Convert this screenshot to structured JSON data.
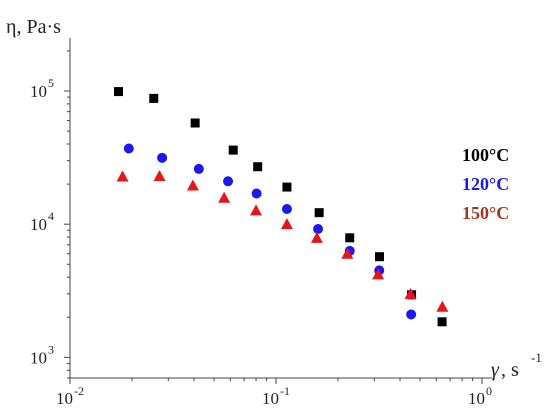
{
  "chart_data": {
    "type": "scatter",
    "xscale": "log",
    "yscale": "log",
    "xlim": [
      0.01,
      1
    ],
    "ylim": [
      700,
      250000
    ],
    "ylabel": "η, Pa·s",
    "xlabel_symbol": "γ",
    "xlabel_unit": ", s",
    "xlabel_exp": "-1",
    "x_ticks": [
      {
        "value": 0.01,
        "base": "10",
        "exp": "-2"
      },
      {
        "value": 0.1,
        "base": "10",
        "exp": "-1"
      },
      {
        "value": 1,
        "base": "10",
        "exp": "0"
      }
    ],
    "y_ticks": [
      {
        "value": 1000,
        "base": "10",
        "exp": "3"
      },
      {
        "value": 10000,
        "base": "10",
        "exp": "4"
      },
      {
        "value": 100000,
        "base": "10",
        "exp": "5"
      }
    ],
    "series": [
      {
        "name": "100°C",
        "color": "#000000",
        "marker": "square",
        "x": [
          0.0172,
          0.0255,
          0.0405,
          0.062,
          0.0815,
          0.113,
          0.162,
          0.228,
          0.318,
          0.455,
          0.64
        ],
        "y": [
          99000,
          88000,
          57500,
          36000,
          27000,
          19000,
          12200,
          7900,
          5700,
          2950,
          1850
        ]
      },
      {
        "name": "120°C",
        "color": "#1a1aee",
        "marker": "circle",
        "x": [
          0.0193,
          0.028,
          0.0422,
          0.0585,
          0.0805,
          0.113,
          0.16,
          0.228,
          0.317,
          0.453
        ],
        "y": [
          37000,
          31500,
          26000,
          21000,
          17000,
          13000,
          9200,
          6300,
          4500,
          2100
        ]
      },
      {
        "name": "150°C",
        "color": "#e8141c",
        "marker": "triangle",
        "x": [
          0.018,
          0.0272,
          0.0395,
          0.056,
          0.08,
          0.113,
          0.158,
          0.222,
          0.313,
          0.45,
          0.642
        ],
        "y": [
          22800,
          23000,
          19500,
          15800,
          12700,
          10000,
          7900,
          6000,
          4200,
          3000,
          2400
        ]
      }
    ],
    "legend": [
      {
        "label": "100°C",
        "color": "#000000"
      },
      {
        "label": "120°C",
        "color": "#1a1aee"
      },
      {
        "label": "150°C",
        "color": "#a2391e"
      }
    ],
    "legend_position": "right"
  }
}
